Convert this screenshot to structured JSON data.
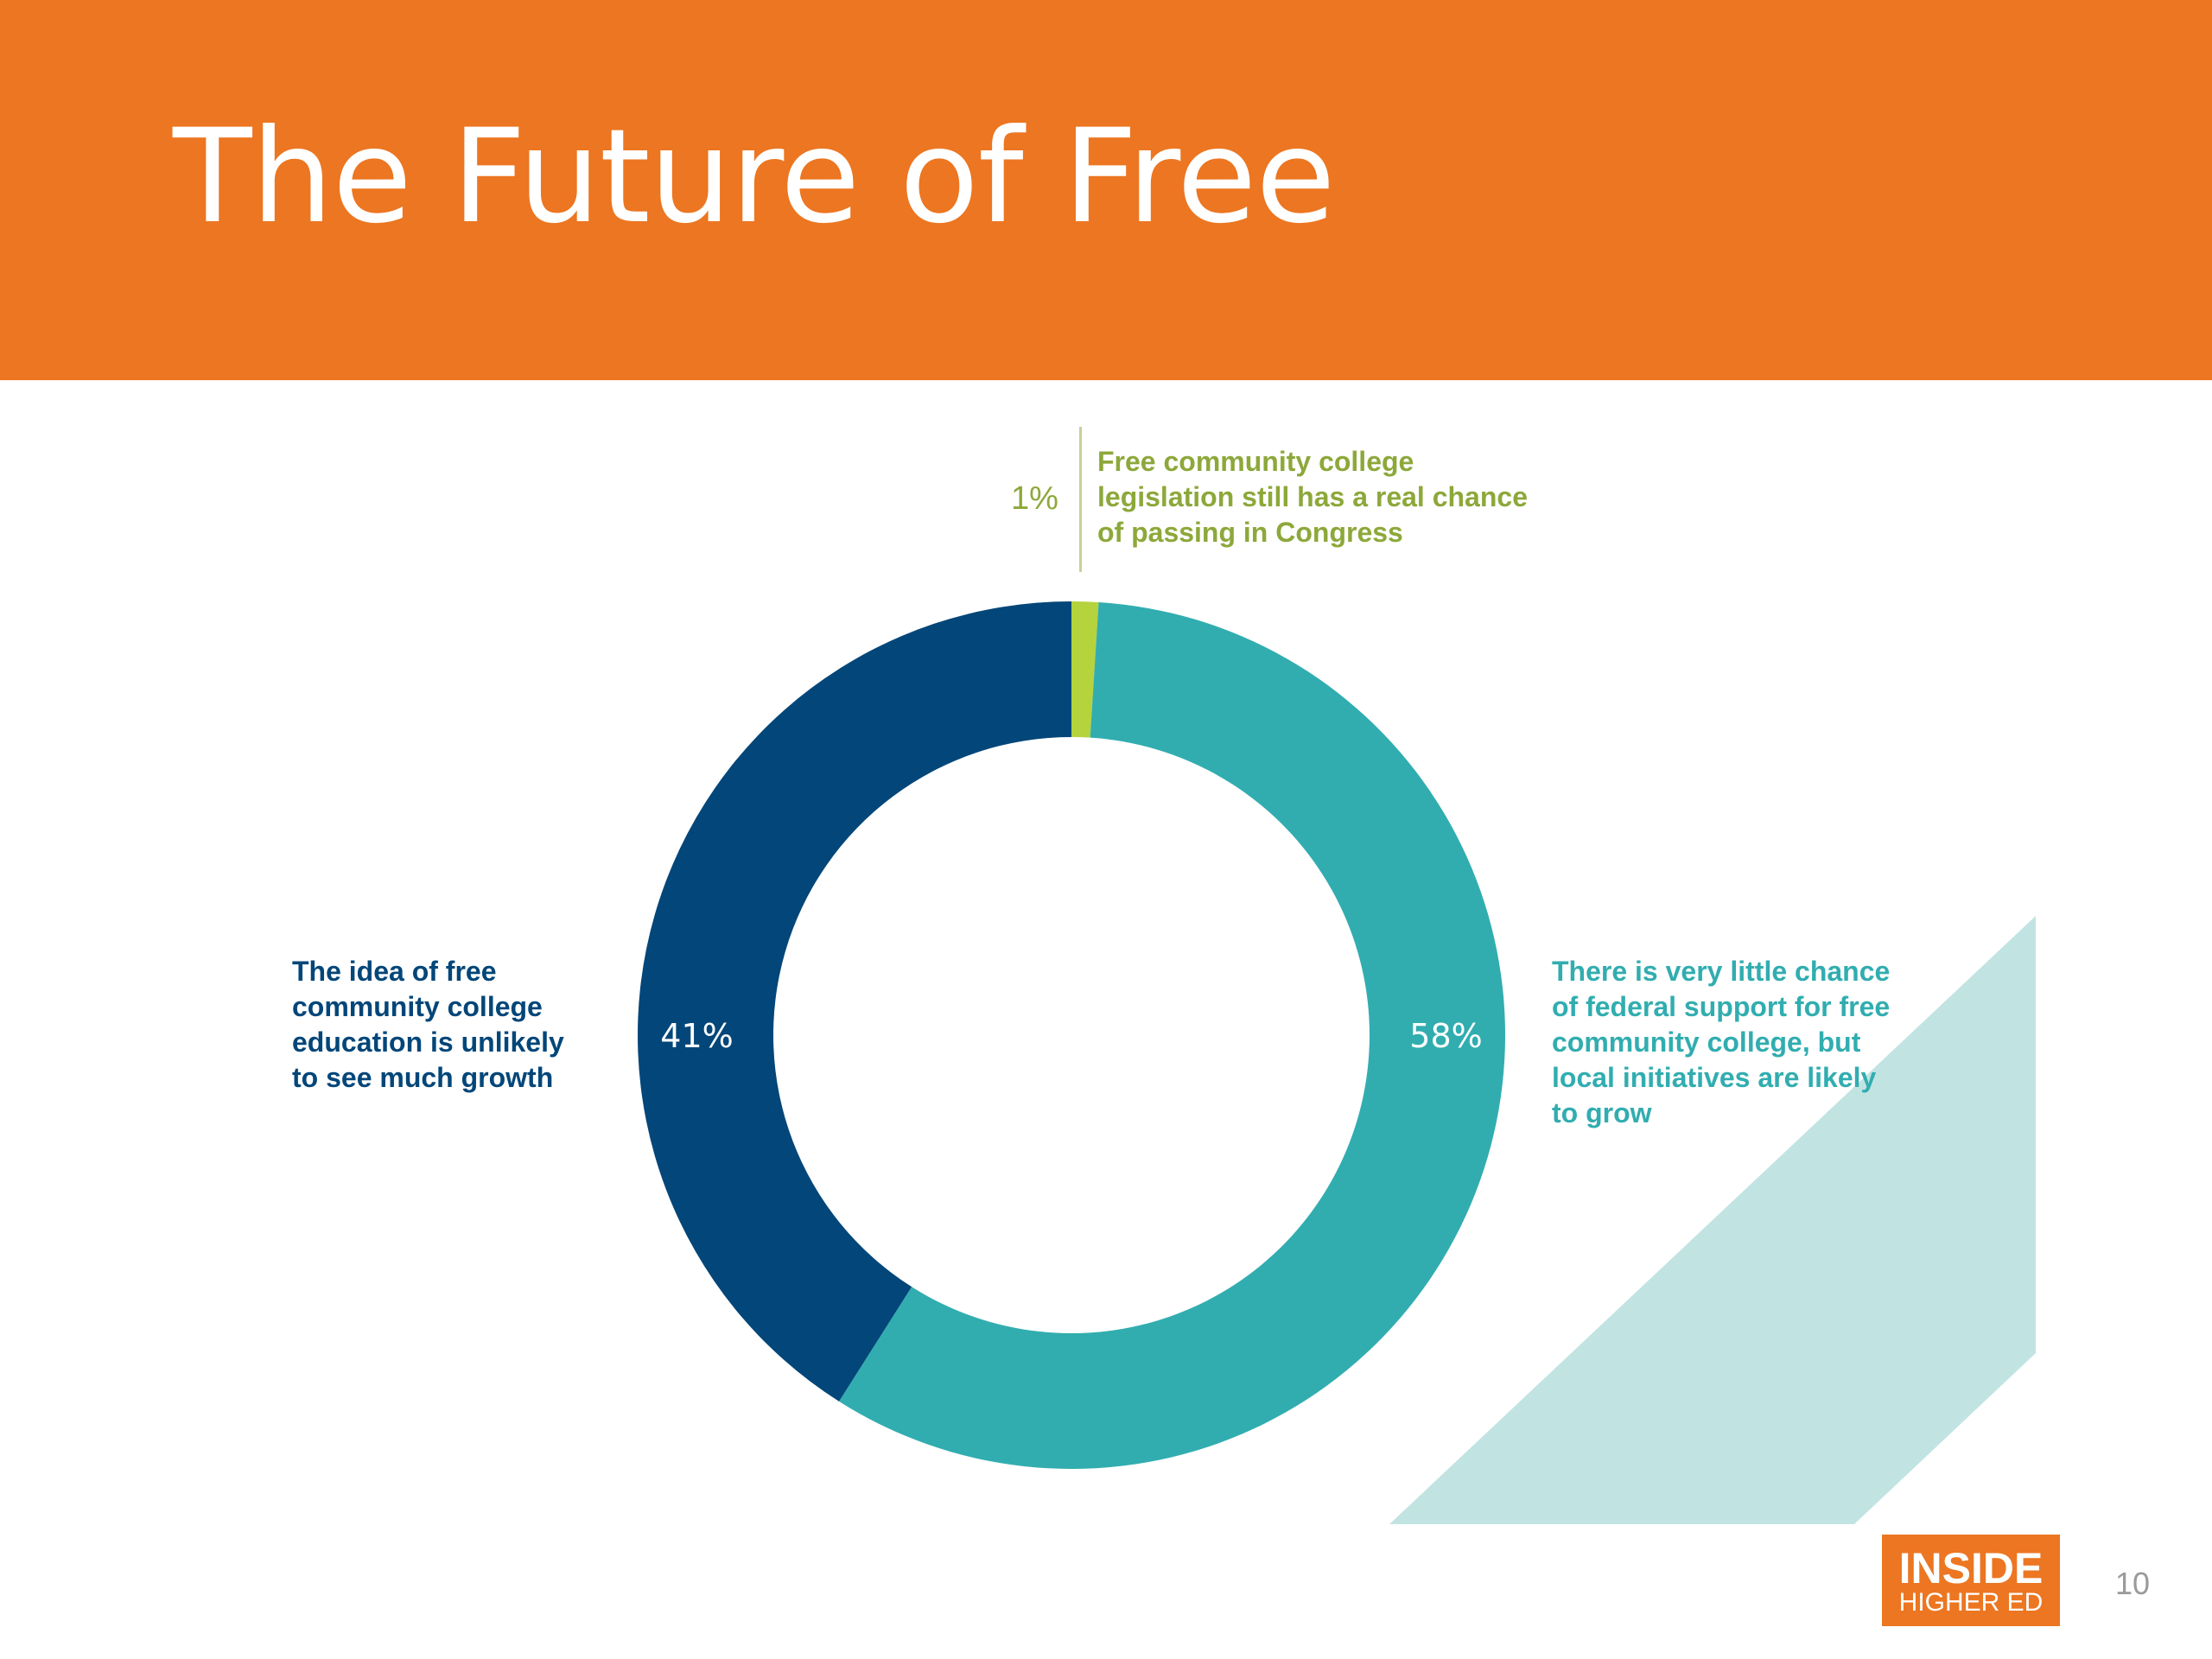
{
  "slide": {
    "title": "The Future of Free",
    "page_number": "10"
  },
  "logo": {
    "line1": "INSIDE",
    "line2": "HIGHER ED"
  },
  "colors": {
    "header": "#ec7621",
    "dark_blue": "#034679",
    "teal": "#31adb0",
    "lime": "#b5d33d",
    "pale_teal": "#c1e4e2",
    "olive_text": "#8da83a"
  },
  "chart_data": {
    "type": "pie",
    "donut": true,
    "series": [
      {
        "name": "Free community college legislation still has a real chance of passing in Congress",
        "value": 1,
        "value_label": "1%",
        "color": "#b5d33d"
      },
      {
        "name": "There is very little chance of federal support for free community college, but local initiatives are likely to grow",
        "value": 58,
        "value_label": "58%",
        "color": "#31adb0"
      },
      {
        "name": "The idea of free community college education is unlikely to see much growth",
        "value": 41,
        "value_label": "41%",
        "color": "#034679"
      }
    ],
    "labels": {
      "top": "Free community college\nlegislation still has a real chance\nof passing in Congress",
      "right": "There is very little chance\nof federal support for free\ncommunity college, but\nlocal initiatives are likely\nto grow",
      "left": "The idea of free\ncommunity college\neducation is unlikely\nto see much growth"
    }
  }
}
